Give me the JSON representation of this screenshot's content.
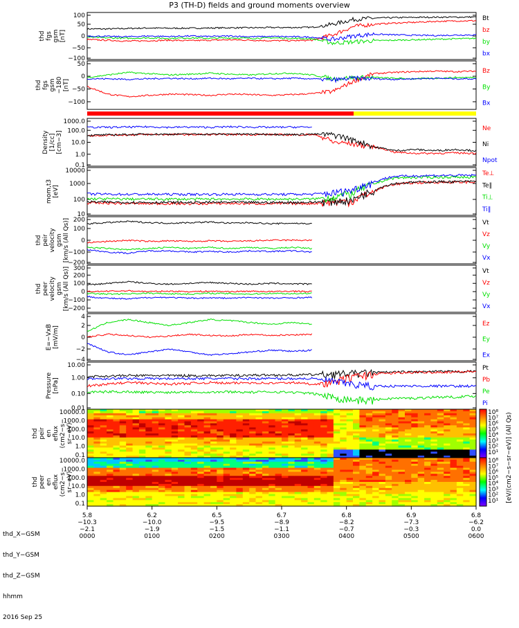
{
  "title": "P3 (TH-D) fields and ground moments overview",
  "colors": {
    "black": "#000000",
    "red": "#ff0000",
    "green": "#00e000",
    "blue": "#0000ff",
    "yellow": "#ffff00"
  },
  "chart_data": [
    {
      "id": "fgs_gsm",
      "type": "line",
      "ylabel": [
        "thd",
        "fgs",
        "gsm",
        "[nT]"
      ],
      "yticks": [
        "100",
        "50",
        "0",
        "−50",
        "−100"
      ],
      "ylim": [
        -100,
        100
      ],
      "log": false,
      "series": [
        {
          "name": "Bt",
          "color": "black",
          "values": [
            30,
            30,
            32,
            34,
            33,
            33,
            34,
            35,
            35,
            36,
            36,
            37,
            50,
            70,
            76,
            78,
            79,
            80,
            80,
            81
          ]
        },
        {
          "name": "bz",
          "color": "red",
          "values": [
            -15,
            -18,
            -22,
            -20,
            -18,
            -20,
            -18,
            -16,
            -18,
            -20,
            -20,
            -18,
            5,
            40,
            50,
            55,
            58,
            62,
            64,
            65
          ]
        },
        {
          "name": "by",
          "color": "green",
          "values": [
            -5,
            -8,
            -10,
            -8,
            -10,
            -8,
            -10,
            -8,
            -10,
            -8,
            -10,
            -12,
            -30,
            -25,
            -20,
            -18,
            -16,
            -14,
            -12,
            -10
          ]
        },
        {
          "name": "bx",
          "color": "blue",
          "values": [
            0,
            -2,
            -3,
            0,
            -2,
            0,
            -2,
            0,
            -3,
            -2,
            -3,
            -5,
            -15,
            0,
            8,
            5,
            3,
            2,
            4,
            5
          ]
        }
      ]
    },
    {
      "id": "fgs_gse",
      "type": "line",
      "ylabel": [
        "thd",
        "fgs",
        "gsm",
        "−180",
        "[nT]"
      ],
      "yticks": [
        "50",
        "0",
        "−50",
        "−100"
      ],
      "ylim": [
        -130,
        60
      ],
      "log": false,
      "series": [
        {
          "name": "Bz",
          "color": "red",
          "values": [
            -40,
            -70,
            -80,
            -75,
            -70,
            -72,
            -75,
            -70,
            -72,
            -75,
            -72,
            -68,
            -60,
            -20,
            10,
            15,
            18,
            20,
            18,
            20
          ]
        },
        {
          "name": "By",
          "color": "green",
          "values": [
            -5,
            5,
            15,
            10,
            5,
            8,
            12,
            8,
            5,
            10,
            12,
            5,
            -10,
            -5,
            -5,
            -8,
            -10,
            -8,
            -5,
            -5
          ]
        },
        {
          "name": "Bx",
          "color": "blue",
          "values": [
            -10,
            -10,
            -12,
            -10,
            -8,
            -10,
            -8,
            -10,
            -8,
            -10,
            -8,
            -10,
            -15,
            -8,
            -10,
            -12,
            -10,
            -8,
            -10,
            -10
          ]
        }
      ]
    },
    {
      "id": "density",
      "type": "line",
      "ylabel": [
        "Density",
        "[1/cc]",
        "[cm−3]"
      ],
      "yticks": [
        "1000.0",
        "100.0",
        "10.0",
        "1.0",
        "0.1"
      ],
      "ylim": [
        0.1,
        1000
      ],
      "log": true,
      "series": [
        {
          "name": "Ne",
          "color": "red",
          "values": [
            35,
            40,
            42,
            45,
            45,
            45,
            45,
            45,
            45,
            45,
            42,
            45,
            10,
            8,
            4,
            1.5,
            1.2,
            1.2,
            1.3,
            1.2
          ]
        },
        {
          "name": "Ni",
          "color": "black",
          "values": [
            38,
            42,
            45,
            48,
            48,
            48,
            48,
            48,
            48,
            48,
            45,
            48,
            45,
            15,
            4,
            2,
            2.5,
            2,
            2.5,
            2
          ]
        },
        {
          "name": "Npot",
          "color": "blue",
          "values": [
            180,
            180,
            190,
            200,
            180,
            190,
            180,
            200,
            190,
            180,
            190,
            185,
            null,
            null,
            null,
            null,
            null,
            null,
            null,
            null
          ]
        }
      ]
    },
    {
      "id": "temperature",
      "type": "line",
      "ylabel": [
        "mom,t3",
        "[eV]"
      ],
      "yticks": [
        "10000",
        "1000",
        "100",
        "10"
      ],
      "ylim": [
        10,
        10000
      ],
      "log": true,
      "series": [
        {
          "name": "Te⊥",
          "color": "red",
          "values": [
            60,
            58,
            56,
            55,
            55,
            54,
            55,
            56,
            55,
            54,
            55,
            56,
            70,
            80,
            300,
            900,
            1100,
            1200,
            1200,
            1250
          ]
        },
        {
          "name": "Te∥",
          "color": "black",
          "values": [
            70,
            68,
            66,
            65,
            65,
            64,
            65,
            66,
            65,
            64,
            65,
            66,
            80,
            90,
            350,
            1000,
            1200,
            1300,
            1300,
            1350
          ]
        },
        {
          "name": "Ti⊥",
          "color": "green",
          "values": [
            110,
            108,
            106,
            105,
            105,
            104,
            105,
            106,
            105,
            104,
            105,
            106,
            140,
            250,
            900,
            2200,
            2400,
            2500,
            2500,
            2600
          ]
        },
        {
          "name": "Ti∥",
          "color": "blue",
          "values": [
            220,
            215,
            210,
            210,
            210,
            208,
            210,
            212,
            210,
            208,
            210,
            212,
            260,
            400,
            1200,
            2800,
            3000,
            3200,
            3200,
            3300
          ]
        }
      ]
    },
    {
      "id": "peir_velocity",
      "type": "line",
      "ylabel": [
        "thd",
        "peir",
        "velocity",
        "gsm",
        "[km/s (All Qs)]"
      ],
      "yticks": [
        "200",
        "100",
        "0",
        "−100",
        "−200"
      ],
      "ylim": [
        -200,
        200
      ],
      "log": false,
      "series": [
        {
          "name": "Vt",
          "color": "black",
          "values": [
            140,
            150,
            160,
            150,
            145,
            150,
            155,
            145,
            150,
            140,
            145,
            140,
            null,
            null,
            null,
            null,
            null,
            null,
            null,
            null
          ]
        },
        {
          "name": "Vz",
          "color": "red",
          "values": [
            -20,
            -10,
            0,
            -10,
            -5,
            -10,
            -5,
            -10,
            -5,
            0,
            0,
            0,
            null,
            null,
            null,
            null,
            null,
            null,
            null,
            null
          ]
        },
        {
          "name": "Vy",
          "color": "green",
          "values": [
            -60,
            -70,
            -80,
            -70,
            -60,
            -70,
            -60,
            -70,
            -60,
            -70,
            -60,
            -70,
            null,
            null,
            null,
            null,
            null,
            null,
            null,
            null
          ]
        },
        {
          "name": "Vx",
          "color": "blue",
          "values": [
            -80,
            -100,
            -110,
            -90,
            -90,
            -100,
            -95,
            -100,
            -90,
            -95,
            -90,
            -100,
            null,
            null,
            null,
            null,
            null,
            null,
            null,
            null
          ]
        }
      ]
    },
    {
      "id": "peer_velocity",
      "type": "line",
      "ylabel": [
        "thd",
        "peer",
        "velocity",
        "gsm",
        "[km/s (All Qs)]"
      ],
      "yticks": [
        "300",
        "200",
        "100",
        "0",
        "−100",
        "−200"
      ],
      "ylim": [
        -250,
        320
      ],
      "log": false,
      "series": [
        {
          "name": "Vt",
          "color": "black",
          "values": [
            80,
            100,
            120,
            100,
            90,
            100,
            110,
            100,
            90,
            100,
            95,
            90,
            null,
            null,
            null,
            null,
            null,
            null,
            null,
            null
          ]
        },
        {
          "name": "Vz",
          "color": "red",
          "values": [
            0,
            5,
            10,
            0,
            5,
            0,
            5,
            0,
            5,
            0,
            5,
            0,
            null,
            null,
            null,
            null,
            null,
            null,
            null,
            null
          ]
        },
        {
          "name": "Vy",
          "color": "green",
          "values": [
            -20,
            -30,
            -25,
            -20,
            -25,
            -30,
            -20,
            -25,
            -30,
            -20,
            -25,
            -20,
            null,
            null,
            null,
            null,
            null,
            null,
            null,
            null
          ]
        },
        {
          "name": "Vx",
          "color": "blue",
          "values": [
            -60,
            -80,
            -90,
            -70,
            -70,
            -80,
            -75,
            -80,
            -70,
            -80,
            -75,
            -70,
            null,
            null,
            null,
            null,
            null,
            null,
            null,
            null
          ]
        }
      ]
    },
    {
      "id": "efield",
      "type": "line",
      "ylabel": [
        "E=−VxB",
        "[mV/m]"
      ],
      "yticks": [
        "4",
        "2",
        "0",
        "−2",
        "−4"
      ],
      "ylim": [
        -4,
        4
      ],
      "log": false,
      "series": [
        {
          "name": "Ez",
          "color": "red",
          "values": [
            0,
            0.5,
            0.3,
            0,
            0.2,
            0.5,
            0.3,
            0.2,
            0.5,
            0.3,
            0.4,
            0.5,
            null,
            null,
            null,
            null,
            null,
            null,
            null,
            null
          ]
        },
        {
          "name": "Ey",
          "color": "green",
          "values": [
            1,
            2.5,
            3,
            2.5,
            2,
            2.5,
            3,
            2.8,
            2.5,
            2.2,
            2.5,
            2.2,
            null,
            null,
            null,
            null,
            null,
            null,
            null,
            null
          ]
        },
        {
          "name": "Ex",
          "color": "blue",
          "values": [
            -1,
            -2.5,
            -3,
            -2.5,
            -2,
            -2.5,
            -3,
            -2.8,
            -2.5,
            -2.2,
            -2.4,
            -2.2,
            null,
            null,
            null,
            null,
            null,
            null,
            null,
            null
          ]
        }
      ]
    },
    {
      "id": "pressure",
      "type": "line",
      "ylabel": [
        "Pressure",
        "[nPa]"
      ],
      "yticks": [
        "10.00",
        "1.00",
        "0.10",
        "0.01"
      ],
      "ylim": [
        0.01,
        10
      ],
      "log": true,
      "series": [
        {
          "name": "Pt",
          "color": "black",
          "values": [
            1.2,
            1.3,
            1.4,
            1.4,
            1.4,
            1.4,
            1.4,
            1.4,
            1.5,
            1.5,
            1.5,
            1.6,
            1.8,
            2.0,
            2.2,
            2.3,
            2.4,
            2.5,
            2.5,
            2.6
          ]
        },
        {
          "name": "Pb",
          "color": "red",
          "values": [
            0.3,
            0.4,
            0.5,
            0.45,
            0.4,
            0.45,
            0.5,
            0.45,
            0.5,
            0.45,
            0.5,
            0.4,
            0.5,
            1.2,
            1.8,
            2,
            2.2,
            2.3,
            2.4,
            2.5
          ]
        },
        {
          "name": "Pe",
          "color": "green",
          "values": [
            0.12,
            0.13,
            0.13,
            0.12,
            0.12,
            0.13,
            0.12,
            0.13,
            0.12,
            0.13,
            0.12,
            0.1,
            0.06,
            0.04,
            0.04,
            0.05,
            0.05,
            0.06,
            0.06,
            0.07
          ]
        },
        {
          "name": "Pi",
          "color": "blue",
          "values": [
            0.9,
            0.9,
            0.9,
            0.9,
            0.9,
            0.9,
            0.9,
            0.9,
            0.9,
            0.9,
            0.9,
            0.9,
            0.6,
            0.4,
            0.3,
            0.3,
            0.3,
            0.3,
            0.3,
            0.3
          ]
        }
      ]
    },
    {
      "id": "peir_spectrogram",
      "type": "heatmap",
      "ylabel": [
        "thd",
        "peir",
        "en",
        "eflux",
        "(cm2−s−",
        "sr−eV)"
      ],
      "yticks": [
        "10000.0",
        "1000.0",
        "100.0",
        "10.0",
        "1.0",
        "0.1"
      ],
      "ylim": [
        0.1,
        30000
      ],
      "log": true
    },
    {
      "id": "peer_spectrogram",
      "type": "heatmap",
      "ylabel": [
        "thd",
        "peer",
        "en",
        "eflux",
        "(cm2−s−",
        "sr−eV)"
      ],
      "yticks": [
        "10000.0",
        "1000.0",
        "100.0",
        "10.0",
        "1.0",
        "0.1"
      ],
      "ylim": [
        0.1,
        30000
      ],
      "log": true
    }
  ],
  "colorbar": {
    "label": "[eV/(cm2−s−sr−eV)] (All Qs)",
    "ticks": [
      "10⁸",
      "10⁷",
      "10⁶",
      "10⁵",
      "10⁴",
      "10³",
      "10²",
      "10¹"
    ],
    "ticks2": [
      "10⁸",
      "10⁷",
      "10⁶",
      "10⁵",
      "10⁴",
      "10³",
      "10²",
      "10¹"
    ]
  },
  "xaxis": {
    "rows": [
      {
        "label": "thd_X−GSM",
        "values": [
          "5.8",
          "6.2",
          "6.5",
          "6.7",
          "6.8",
          "6.9",
          "6.8"
        ]
      },
      {
        "label": "thd_Y−GSM",
        "values": [
          "−10.3",
          "−10.0",
          "−9.5",
          "−8.9",
          "−8.2",
          "−7.3",
          "−6.2"
        ]
      },
      {
        "label": "thd_Z−GSM",
        "values": [
          "−2.1",
          "−1.9",
          "−1.5",
          "−1.1",
          "−0.7",
          "−0.3",
          "0.0"
        ]
      },
      {
        "label": "hhmm",
        "values": [
          "0000",
          "0100",
          "0200",
          "0300",
          "0400",
          "0500",
          "0600"
        ]
      }
    ],
    "date": "2016 Sep 25"
  }
}
